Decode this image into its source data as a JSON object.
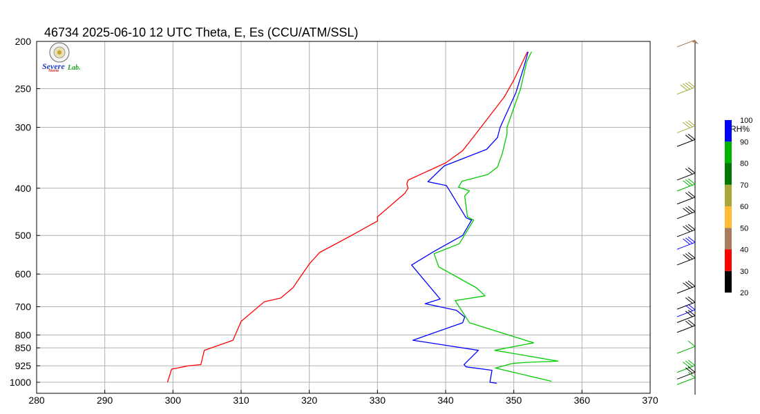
{
  "title": "46734  2025-06-10 12 UTC  Theta, E, Es (CCU/ATM/SSL)",
  "logo": {
    "text_a": "Severe",
    "text_b": "Storm",
    "text_c": "Lab."
  },
  "colors": {
    "theta": "#ff0000",
    "e": "#0000ff",
    "es": "#00cc00",
    "grid": "#b0b0b0"
  },
  "chart_data": {
    "type": "line",
    "xlim": [
      280,
      370
    ],
    "ylim": [
      1000,
      200
    ],
    "y_scale": "log",
    "grid": true,
    "x_ticks": [
      280,
      290,
      300,
      310,
      320,
      330,
      340,
      350,
      360,
      370
    ],
    "y_ticks": [
      1000,
      925,
      850,
      800,
      700,
      600,
      500,
      400,
      300,
      250,
      200
    ],
    "series": [
      {
        "key": "theta",
        "points": [
          [
            299.2,
            1000
          ],
          [
            299.8,
            940
          ],
          [
            301.5,
            930
          ],
          [
            302.3,
            925
          ],
          [
            304.1,
            920
          ],
          [
            304.6,
            860
          ],
          [
            308.8,
            820
          ],
          [
            310,
            750
          ],
          [
            313.4,
            684
          ],
          [
            315.8,
            672
          ],
          [
            317.6,
            640
          ],
          [
            320,
            572
          ],
          [
            321.5,
            542
          ],
          [
            326.2,
            500
          ],
          [
            330,
            467
          ],
          [
            330,
            458
          ],
          [
            334,
            410
          ],
          [
            334.5,
            400
          ],
          [
            334.3,
            392
          ],
          [
            334.5,
            385
          ],
          [
            340,
            355
          ],
          [
            342.5,
            335
          ],
          [
            344,
            315
          ],
          [
            348.6,
            260
          ],
          [
            350,
            240
          ],
          [
            352,
            210
          ]
        ]
      },
      {
        "key": "e",
        "points": [
          [
            347.5,
            1005
          ],
          [
            346.5,
            1000
          ],
          [
            346.8,
            945
          ],
          [
            343,
            930
          ],
          [
            342.7,
            920
          ],
          [
            344.8,
            860
          ],
          [
            335.2,
            820
          ],
          [
            342.5,
            755
          ],
          [
            342.8,
            735
          ],
          [
            341.6,
            712
          ],
          [
            337,
            690
          ],
          [
            339.2,
            675
          ],
          [
            335,
            575
          ],
          [
            338.2,
            540
          ],
          [
            342.5,
            500
          ],
          [
            343.8,
            465
          ],
          [
            343,
            460
          ],
          [
            340.6,
            405
          ],
          [
            340.1,
            395
          ],
          [
            337.4,
            388
          ],
          [
            339.8,
            360
          ],
          [
            346,
            333
          ],
          [
            347.6,
            315
          ],
          [
            348,
            300
          ],
          [
            350.3,
            255
          ],
          [
            351.5,
            225
          ],
          [
            352.1,
            210
          ]
        ]
      },
      {
        "key": "es",
        "points": [
          [
            355.5,
            995
          ],
          [
            347.3,
            935
          ],
          [
            349.8,
            915
          ],
          [
            352,
            910
          ],
          [
            356.5,
            905
          ],
          [
            347.2,
            860
          ],
          [
            352.9,
            830
          ],
          [
            343.5,
            755
          ],
          [
            341.4,
            680
          ],
          [
            345.8,
            665
          ],
          [
            344.5,
            640
          ],
          [
            339,
            580
          ],
          [
            338.3,
            545
          ],
          [
            342,
            520
          ],
          [
            344.1,
            465
          ],
          [
            343.2,
            458
          ],
          [
            342.8,
            415
          ],
          [
            343.5,
            405
          ],
          [
            341.9,
            398
          ],
          [
            342.4,
            387
          ],
          [
            346.2,
            375
          ],
          [
            347.6,
            362
          ],
          [
            348.3,
            340
          ],
          [
            349,
            310
          ],
          [
            349,
            300
          ],
          [
            351,
            250
          ],
          [
            351.9,
            220
          ],
          [
            352.6,
            210
          ]
        ]
      }
    ],
    "colorbar": {
      "title": "RH%",
      "ticks": [
        20,
        30,
        40,
        50,
        60,
        70,
        80,
        90,
        100
      ],
      "bands": [
        {
          "from": 20,
          "to": 30,
          "color": "#000000"
        },
        {
          "from": 30,
          "to": 40,
          "color": "#ff0000"
        },
        {
          "from": 40,
          "to": 50,
          "color": "#a87d5e"
        },
        {
          "from": 50,
          "to": 60,
          "color": "#ffbb33"
        },
        {
          "from": 60,
          "to": 70,
          "color": "#a8a838"
        },
        {
          "from": 70,
          "to": 80,
          "color": "#007700"
        },
        {
          "from": 80,
          "to": 90,
          "color": "#00b400"
        },
        {
          "from": 90,
          "to": 100,
          "color": "#0000ff"
        }
      ]
    },
    "wind_barbs": [
      {
        "pressure": 200,
        "color": "#a87d5e",
        "barbs": 1,
        "pennant": true
      },
      {
        "pressure": 250,
        "color": "#a8a838",
        "barbs": 4
      },
      {
        "pressure": 300,
        "color": "#a8a838",
        "barbs": 3
      },
      {
        "pressure": 320,
        "color": "#000000",
        "barbs": 2
      },
      {
        "pressure": 375,
        "color": "#000000",
        "barbs": 2
      },
      {
        "pressure": 395,
        "color": "#00b400",
        "barbs": 3
      },
      {
        "pressure": 420,
        "color": "#000000",
        "barbs": 2
      },
      {
        "pressure": 450,
        "color": "#000000",
        "barbs": 3
      },
      {
        "pressure": 490,
        "color": "#000000",
        "barbs": 3
      },
      {
        "pressure": 520,
        "color": "#0000ff",
        "barbs": 3
      },
      {
        "pressure": 560,
        "color": "#000000",
        "barbs": 3
      },
      {
        "pressure": 640,
        "color": "#000000",
        "barbs": 3
      },
      {
        "pressure": 690,
        "color": "#000000",
        "barbs": 2
      },
      {
        "pressure": 715,
        "color": "#0000ff",
        "barbs": 2
      },
      {
        "pressure": 735,
        "color": "#000000",
        "barbs": 2
      },
      {
        "pressure": 770,
        "color": "#000000",
        "barbs": 2
      },
      {
        "pressure": 850,
        "color": "#00b400",
        "barbs": 1
      },
      {
        "pressure": 930,
        "color": "#00b400",
        "barbs": 3
      },
      {
        "pressure": 960,
        "color": "#000000",
        "barbs": 2
      },
      {
        "pressure": 985,
        "color": "#00b400",
        "barbs": 1
      }
    ]
  }
}
